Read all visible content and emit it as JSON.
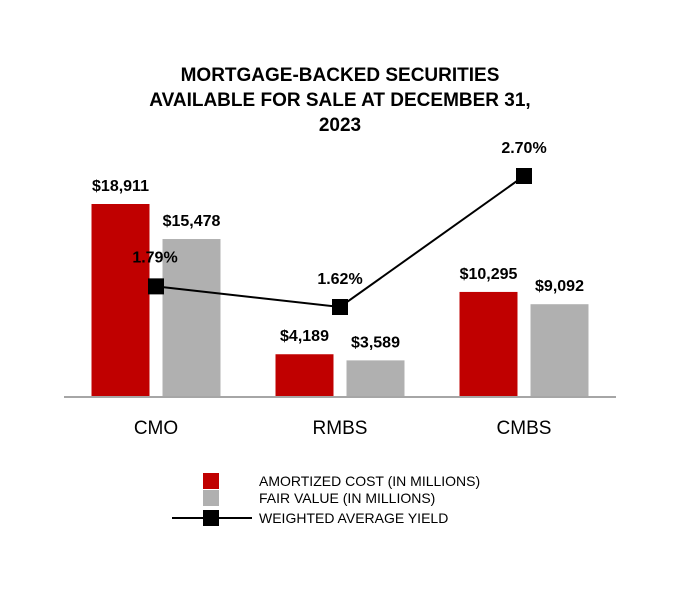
{
  "chart_data": {
    "type": "bar",
    "title": [
      "MORTGAGE-BACKED SECURITIES",
      "AVAILABLE FOR SALE AT DECEMBER 31,",
      "2023"
    ],
    "categories": [
      "CMO",
      "RMBS",
      "CMBS"
    ],
    "series": [
      {
        "name": "AMORTIZED COST (IN MILLIONS)",
        "type": "bar",
        "color": "#c00000",
        "values": [
          18911,
          4189,
          10295
        ],
        "labels": [
          "$18,911",
          "$4,189",
          "$10,295"
        ]
      },
      {
        "name": "FAIR VALUE (IN MILLIONS)",
        "type": "bar",
        "color": "#b0b0b0",
        "values": [
          15478,
          3589,
          9092
        ],
        "labels": [
          "$15,478",
          "$3,589",
          "$9,092"
        ]
      },
      {
        "name": "WEIGHTED AVERAGE YIELD",
        "type": "line",
        "color": "#000000",
        "values": [
          1.79,
          1.62,
          2.7
        ],
        "labels": [
          "1.79%",
          "1.62%",
          "2.70%"
        ]
      }
    ],
    "ylim": [
      0,
      20000
    ],
    "y2lim": [
      0,
      3.5
    ],
    "grid": false,
    "legend_position": "bottom"
  }
}
